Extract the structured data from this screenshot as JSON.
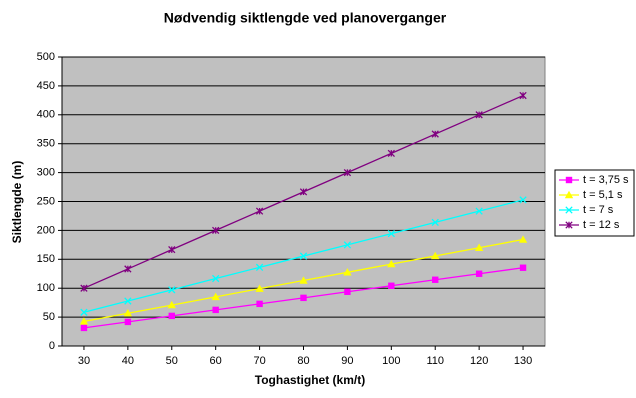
{
  "chart_data": {
    "type": "line",
    "title": "Nødvendig siktlengde ved planoverganger",
    "x_label": "Toghastighet (km/t)",
    "y_label": "Siktlengde (m)",
    "x": [
      30,
      40,
      50,
      60,
      70,
      80,
      90,
      100,
      110,
      120,
      130
    ],
    "xlim": [
      25,
      135
    ],
    "xticks": [
      30,
      40,
      50,
      60,
      70,
      80,
      90,
      100,
      110,
      120,
      130
    ],
    "ylim": [
      0,
      500
    ],
    "yticks": [
      0,
      50,
      100,
      150,
      200,
      250,
      300,
      350,
      400,
      450,
      500
    ],
    "grid": true,
    "legend": "right",
    "series": [
      {
        "name": "t = 3,75 s",
        "color": "#ff00ff",
        "marker": "square",
        "values": [
          31.3,
          41.7,
          52.1,
          62.5,
          72.9,
          83.3,
          93.8,
          104.2,
          114.6,
          125,
          135.4
        ]
      },
      {
        "name": "t = 5,1 s",
        "color": "#ffff00",
        "marker": "triangle",
        "values": [
          42.5,
          56.7,
          70.8,
          85,
          99.2,
          113.3,
          127.5,
          141.7,
          155.8,
          170,
          184.2
        ]
      },
      {
        "name": "t = 7 s",
        "color": "#00ffff",
        "marker": "x",
        "values": [
          58.3,
          77.8,
          97.2,
          116.7,
          136.1,
          155.6,
          175,
          194.4,
          213.9,
          233.3,
          252.8
        ]
      },
      {
        "name": "t = 12 s",
        "color": "#800080",
        "marker": "star",
        "values": [
          100,
          133.3,
          166.7,
          200,
          233.3,
          266.7,
          300,
          333.3,
          366.7,
          400,
          433.3
        ]
      }
    ]
  }
}
